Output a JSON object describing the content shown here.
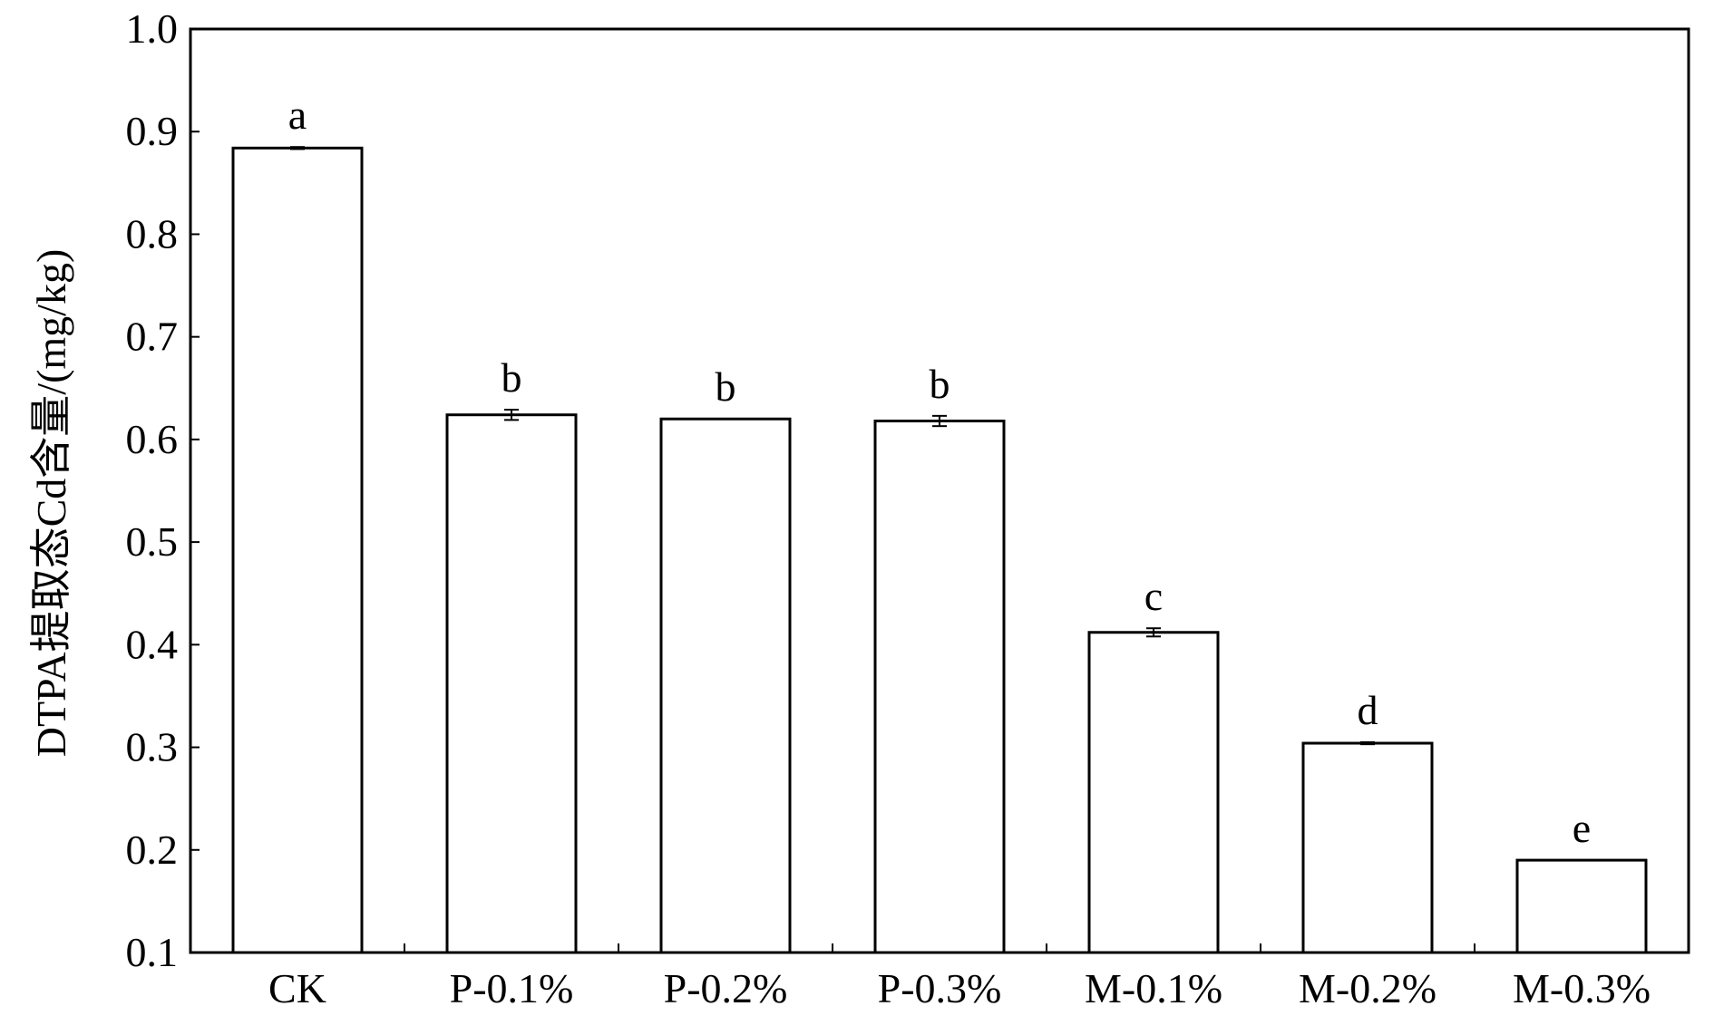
{
  "chart_data": {
    "type": "bar",
    "title": "",
    "xlabel": "",
    "ylabel": "DTPA提取态Cd含量/(mg/kg)",
    "ylim": [
      0.1,
      1.0
    ],
    "yticks": [
      "0.1",
      "0.2",
      "0.3",
      "0.4",
      "0.5",
      "0.6",
      "0.7",
      "0.8",
      "0.9",
      "1.0"
    ],
    "ytick_values": [
      0.1,
      0.2,
      0.3,
      0.4,
      0.5,
      0.6,
      0.7,
      0.8,
      0.9,
      1.0
    ],
    "categories": [
      "CK",
      "P-0.1%",
      "P-0.2%",
      "P-0.3%",
      "M-0.1%",
      "M-0.2%",
      "M-0.3%"
    ],
    "values": [
      0.884,
      0.624,
      0.62,
      0.618,
      0.412,
      0.304,
      0.19
    ],
    "errors": [
      0.001,
      0.005,
      0.0,
      0.005,
      0.004,
      0.001,
      0.0
    ],
    "significance": [
      "a",
      "b",
      "b",
      "b",
      "c",
      "d",
      "e"
    ],
    "grid": false,
    "legend": "none",
    "bar_fill": "#ffffff",
    "bar_stroke": "#000000"
  }
}
